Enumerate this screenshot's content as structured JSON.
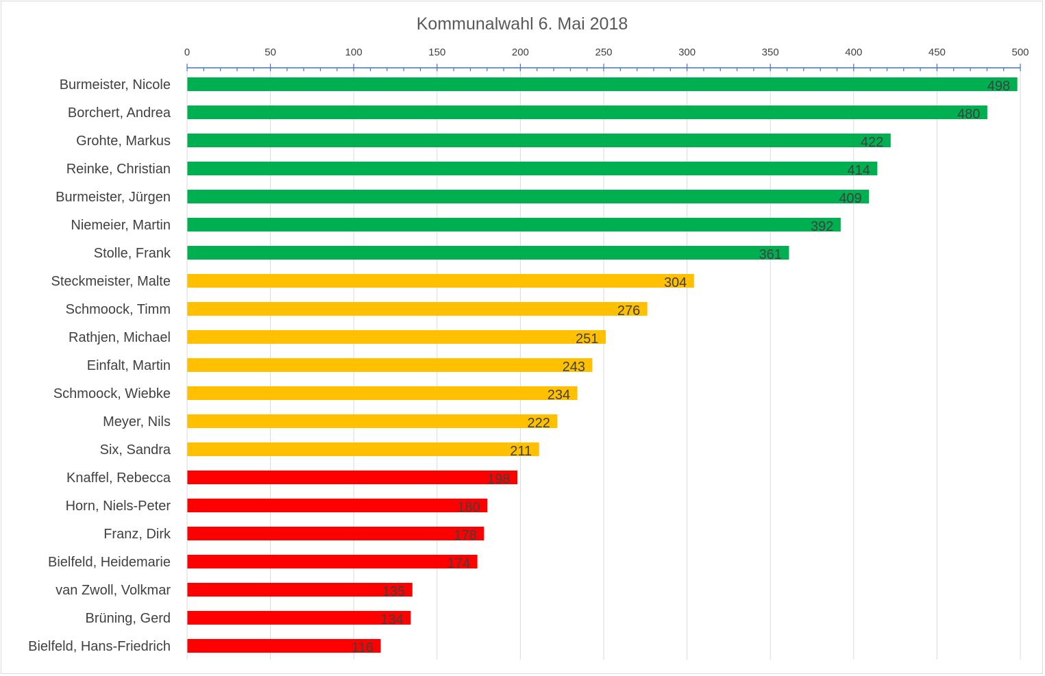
{
  "chart_data": {
    "type": "bar",
    "orientation": "horizontal",
    "title": "Kommunalwahl 6. Mai 2018",
    "xlim": [
      0,
      500
    ],
    "ticks": [
      0,
      50,
      100,
      150,
      200,
      250,
      300,
      350,
      400,
      450,
      500
    ],
    "tick_labels": [
      "0",
      "50",
      "100",
      "150",
      "200",
      "250",
      "300",
      "350",
      "400",
      "450",
      "500"
    ],
    "axis_position": "top",
    "grid": true,
    "categories": [
      "Burmeister, Nicole",
      "Borchert, Andrea",
      "Grohte, Markus",
      "Reinke, Christian",
      "Burmeister, Jürgen",
      "Niemeier, Martin",
      "Stolle, Frank",
      "Steckmeister, Malte",
      "Schmoock, Timm",
      "Rathjen, Michael",
      "Einfalt, Martin",
      "Schmoock, Wiebke",
      "Meyer, Nils",
      "Six, Sandra",
      "Knaffel, Rebecca",
      "Horn, Niels-Peter",
      "Franz, Dirk",
      "Bielfeld, Heidemarie",
      "van Zwoll, Volkmar",
      "Brüning, Gerd",
      "Bielfeld, Hans-Friedrich"
    ],
    "values": [
      498,
      480,
      422,
      414,
      409,
      392,
      361,
      304,
      276,
      251,
      243,
      234,
      222,
      211,
      198,
      180,
      178,
      174,
      135,
      134,
      116
    ],
    "value_labels": [
      "498",
      "480",
      "422",
      "414",
      "409",
      "392",
      "361",
      "304",
      "276",
      "251",
      "243",
      "234",
      "222",
      "211",
      "198",
      "180",
      "178",
      "174",
      "135",
      "134",
      "116"
    ],
    "bar_colors": [
      "#00b050",
      "#00b050",
      "#00b050",
      "#00b050",
      "#00b050",
      "#00b050",
      "#00b050",
      "#ffc000",
      "#ffc000",
      "#ffc000",
      "#ffc000",
      "#ffc000",
      "#ffc000",
      "#ffc000",
      "#ff0000",
      "#ff0000",
      "#ff0000",
      "#ff0000",
      "#ff0000",
      "#ff0000",
      "#ff0000"
    ],
    "axis_color": "#4472c4",
    "grid_color": "#d9d9d9"
  }
}
